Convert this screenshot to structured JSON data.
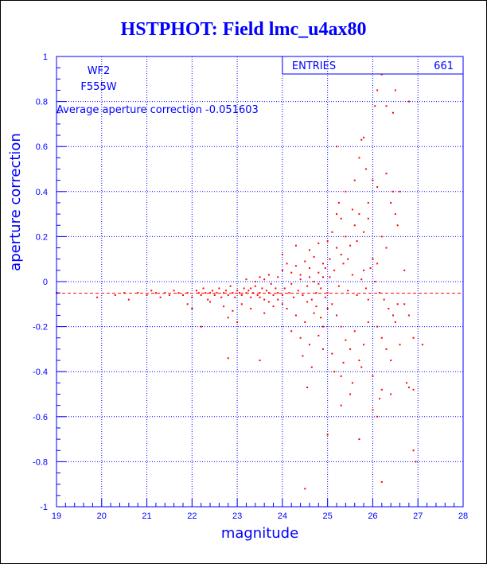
{
  "page": {
    "title": "HSTPHOT: Field lmc_u4ax80"
  },
  "stats_box": {
    "label": "ENTRIES",
    "value": "661"
  },
  "annotations": {
    "camera": "WF2",
    "filter": "F555W",
    "average_text": "Average aperture correction -0.051603"
  },
  "colors": {
    "axes": "#0000ff",
    "grid": "#0000ff",
    "points": "#ff0000",
    "average_line": "#ff0000",
    "title": "#0000ff"
  },
  "chart_data": {
    "type": "scatter",
    "title": "HSTPHOT: Field lmc_u4ax80",
    "xlabel": "magnitude",
    "ylabel": "aperture correction",
    "xlim": [
      19,
      28
    ],
    "ylim": [
      -1,
      1
    ],
    "x_ticks": [
      "19",
      "20",
      "21",
      "22",
      "23",
      "24",
      "25",
      "26",
      "27",
      "28"
    ],
    "y_ticks": [
      "-1",
      "-0.8",
      "-0.6",
      "-0.4",
      "-0.2",
      "0",
      "0.2",
      "0.4",
      "0.6",
      "0.8",
      "1"
    ],
    "grid": true,
    "grid_style": "dotted",
    "entries": 661,
    "average_line_y": -0.051603,
    "series": [
      {
        "points": [
          [
            19.0,
            -0.05
          ],
          [
            19.9,
            -0.07
          ],
          [
            20.3,
            -0.06
          ],
          [
            20.5,
            -0.05
          ],
          [
            20.6,
            -0.08
          ],
          [
            20.8,
            -0.05
          ],
          [
            21.0,
            -0.06
          ],
          [
            21.1,
            -0.04
          ],
          [
            21.2,
            -0.05
          ],
          [
            21.3,
            -0.07
          ],
          [
            21.4,
            -0.05
          ],
          [
            21.5,
            -0.06
          ],
          [
            21.6,
            -0.04
          ],
          [
            21.7,
            -0.05
          ],
          [
            21.8,
            -0.06
          ],
          [
            21.9,
            -0.05
          ],
          [
            22.0,
            -0.07
          ],
          [
            22.1,
            -0.04
          ],
          [
            22.15,
            -0.05
          ],
          [
            22.2,
            -0.06
          ],
          [
            22.25,
            -0.03
          ],
          [
            22.3,
            -0.05
          ],
          [
            22.35,
            -0.08
          ],
          [
            22.4,
            -0.05
          ],
          [
            22.45,
            -0.04
          ],
          [
            22.5,
            -0.06
          ],
          [
            22.55,
            -0.05
          ],
          [
            22.6,
            -0.03
          ],
          [
            22.65,
            -0.07
          ],
          [
            22.7,
            -0.05
          ],
          [
            22.75,
            -0.04
          ],
          [
            22.8,
            -0.06
          ],
          [
            22.85,
            -0.02
          ],
          [
            22.9,
            -0.05
          ],
          [
            22.95,
            -0.07
          ],
          [
            23.0,
            -0.04
          ],
          [
            23.05,
            -0.05
          ],
          [
            23.1,
            -0.06
          ],
          [
            23.15,
            -0.03
          ],
          [
            23.2,
            -0.05
          ],
          [
            23.25,
            -0.04
          ],
          [
            23.3,
            -0.07
          ],
          [
            23.35,
            -0.05
          ],
          [
            23.4,
            -0.02
          ],
          [
            23.45,
            -0.06
          ],
          [
            23.5,
            -0.05
          ],
          [
            23.55,
            -0.03
          ],
          [
            23.6,
            -0.08
          ],
          [
            23.65,
            -0.04
          ],
          [
            23.7,
            -0.05
          ],
          [
            23.75,
            -0.01
          ],
          [
            23.8,
            -0.06
          ],
          [
            23.85,
            -0.03
          ],
          [
            23.9,
            -0.05
          ],
          [
            21.9,
            -0.1
          ],
          [
            22.0,
            -0.12
          ],
          [
            22.4,
            -0.09
          ],
          [
            22.7,
            -0.11
          ],
          [
            22.9,
            -0.13
          ],
          [
            23.1,
            -0.1
          ],
          [
            23.3,
            -0.12
          ],
          [
            23.6,
            -0.14
          ],
          [
            23.8,
            -0.11
          ],
          [
            22.2,
            -0.2
          ],
          [
            22.8,
            -0.16
          ],
          [
            23.0,
            -0.18
          ],
          [
            23.4,
            0.0
          ],
          [
            23.5,
            0.02
          ],
          [
            23.6,
            0.01
          ],
          [
            23.7,
            0.03
          ],
          [
            23.9,
            0.02
          ],
          [
            23.2,
            0.01
          ],
          [
            22.8,
            -0.34
          ],
          [
            23.5,
            -0.35
          ],
          [
            24.0,
            0.05
          ],
          [
            24.1,
            0.08
          ],
          [
            24.2,
            0.04
          ],
          [
            24.3,
            0.07
          ],
          [
            24.4,
            0.03
          ],
          [
            24.5,
            0.09
          ],
          [
            24.6,
            0.06
          ],
          [
            24.7,
            0.11
          ],
          [
            24.8,
            0.04
          ],
          [
            24.9,
            0.08
          ],
          [
            24.05,
            -0.03
          ],
          [
            24.15,
            -0.05
          ],
          [
            24.25,
            -0.07
          ],
          [
            24.35,
            -0.04
          ],
          [
            24.45,
            -0.06
          ],
          [
            24.55,
            -0.02
          ],
          [
            24.65,
            -0.08
          ],
          [
            24.75,
            -0.05
          ],
          [
            24.85,
            -0.03
          ],
          [
            24.95,
            -0.07
          ],
          [
            24.1,
            -0.12
          ],
          [
            24.3,
            -0.15
          ],
          [
            24.5,
            -0.18
          ],
          [
            24.7,
            -0.14
          ],
          [
            24.9,
            -0.2
          ],
          [
            24.2,
            -0.22
          ],
          [
            24.4,
            -0.25
          ],
          [
            24.6,
            -0.28
          ],
          [
            24.8,
            -0.24
          ],
          [
            24.0,
            -0.1
          ],
          [
            24.45,
            -0.33
          ],
          [
            24.55,
            -0.47
          ],
          [
            24.65,
            -0.38
          ],
          [
            24.9,
            -0.3
          ],
          [
            24.5,
            -0.92
          ],
          [
            24.0,
            0.12
          ],
          [
            24.3,
            0.16
          ],
          [
            24.6,
            0.14
          ],
          [
            24.8,
            0.17
          ],
          [
            24.95,
            0.06
          ],
          [
            25.0,
            0.18
          ],
          [
            25.1,
            0.22
          ],
          [
            25.2,
            0.15
          ],
          [
            25.3,
            0.12
          ],
          [
            25.4,
            0.2
          ],
          [
            25.5,
            0.16
          ],
          [
            25.6,
            0.25
          ],
          [
            25.7,
            0.3
          ],
          [
            25.8,
            0.22
          ],
          [
            25.9,
            0.28
          ],
          [
            25.05,
            0.02
          ],
          [
            25.15,
            0.05
          ],
          [
            25.25,
            -0.02
          ],
          [
            25.35,
            0.08
          ],
          [
            25.45,
            -0.04
          ],
          [
            25.55,
            0.03
          ],
          [
            25.65,
            -0.06
          ],
          [
            25.75,
            0.01
          ],
          [
            25.85,
            -0.03
          ],
          [
            25.95,
            0.06
          ],
          [
            25.1,
            -0.1
          ],
          [
            25.2,
            -0.15
          ],
          [
            25.3,
            -0.2
          ],
          [
            25.4,
            -0.26
          ],
          [
            25.5,
            -0.3
          ],
          [
            25.6,
            -0.22
          ],
          [
            25.7,
            -0.35
          ],
          [
            25.8,
            -0.28
          ],
          [
            25.9,
            -0.18
          ],
          [
            25.0,
            -0.12
          ],
          [
            25.15,
            -0.4
          ],
          [
            25.35,
            -0.36
          ],
          [
            25.55,
            -0.45
          ],
          [
            25.75,
            -0.38
          ],
          [
            25.3,
            -0.55
          ],
          [
            25.5,
            -0.5
          ],
          [
            25.0,
            -0.68
          ],
          [
            25.7,
            -0.7
          ],
          [
            25.2,
            0.6
          ],
          [
            25.4,
            0.4
          ],
          [
            25.6,
            0.45
          ],
          [
            25.7,
            0.55
          ],
          [
            25.75,
            0.63
          ],
          [
            25.8,
            0.64
          ],
          [
            25.85,
            0.5
          ],
          [
            25.9,
            0.35
          ],
          [
            25.55,
            0.32
          ],
          [
            25.25,
            0.35
          ],
          [
            26.0,
            0.1
          ],
          [
            26.1,
            0.08
          ],
          [
            26.2,
            0.2
          ],
          [
            26.3,
            0.15
          ],
          [
            26.4,
            0.35
          ],
          [
            26.45,
            0.4
          ],
          [
            26.5,
            0.3
          ],
          [
            26.55,
            0.25
          ],
          [
            26.05,
            0.0
          ],
          [
            26.15,
            -0.05
          ],
          [
            26.25,
            -0.08
          ],
          [
            26.35,
            -0.12
          ],
          [
            26.45,
            -0.15
          ],
          [
            26.55,
            -0.1
          ],
          [
            26.1,
            -0.2
          ],
          [
            26.2,
            -0.25
          ],
          [
            26.3,
            -0.3
          ],
          [
            26.4,
            -0.35
          ],
          [
            26.5,
            -0.18
          ],
          [
            26.6,
            -0.28
          ],
          [
            26.0,
            -0.42
          ],
          [
            26.2,
            -0.48
          ],
          [
            26.4,
            -0.5
          ],
          [
            26.15,
            -0.52
          ],
          [
            26.0,
            0.45
          ],
          [
            26.1,
            0.42
          ],
          [
            26.3,
            0.48
          ],
          [
            26.45,
            0.75
          ],
          [
            26.3,
            0.78
          ],
          [
            26.5,
            0.85
          ],
          [
            26.1,
            0.85
          ],
          [
            26.2,
            0.92
          ],
          [
            26.05,
            0.78
          ],
          [
            26.2,
            -0.89
          ],
          [
            26.0,
            -0.57
          ],
          [
            26.1,
            -0.6
          ],
          [
            26.7,
            -0.1
          ],
          [
            26.8,
            -0.15
          ],
          [
            26.9,
            -0.25
          ],
          [
            26.75,
            -0.45
          ],
          [
            26.8,
            -0.47
          ],
          [
            26.9,
            -0.48
          ],
          [
            26.8,
            0.8
          ],
          [
            26.9,
            -0.75
          ],
          [
            26.95,
            -0.8
          ],
          [
            27.1,
            -0.28
          ],
          [
            26.7,
            0.05
          ],
          [
            26.6,
            0.4
          ],
          [
            25.2,
            0.3
          ],
          [
            25.3,
            0.28
          ],
          [
            25.45,
            0.1
          ],
          [
            25.65,
            0.18
          ],
          [
            25.8,
            0.05
          ],
          [
            25.9,
            -0.08
          ],
          [
            24.7,
            0.0
          ],
          [
            24.8,
            -0.01
          ],
          [
            24.9,
            0.02
          ],
          [
            25.0,
            -0.05
          ],
          [
            25.05,
            0.1
          ],
          [
            24.6,
            0.02
          ],
          [
            23.3,
            -0.03
          ],
          [
            23.5,
            -0.07
          ],
          [
            23.7,
            -0.09
          ],
          [
            23.9,
            -0.08
          ],
          [
            24.0,
            -0.06
          ],
          [
            24.2,
            -0.01
          ],
          [
            24.4,
            0.01
          ],
          [
            24.55,
            -0.09
          ],
          [
            24.75,
            -0.11
          ],
          [
            24.85,
            -0.16
          ],
          [
            25.1,
            -0.32
          ],
          [
            25.3,
            -0.42
          ]
        ]
      }
    ]
  }
}
